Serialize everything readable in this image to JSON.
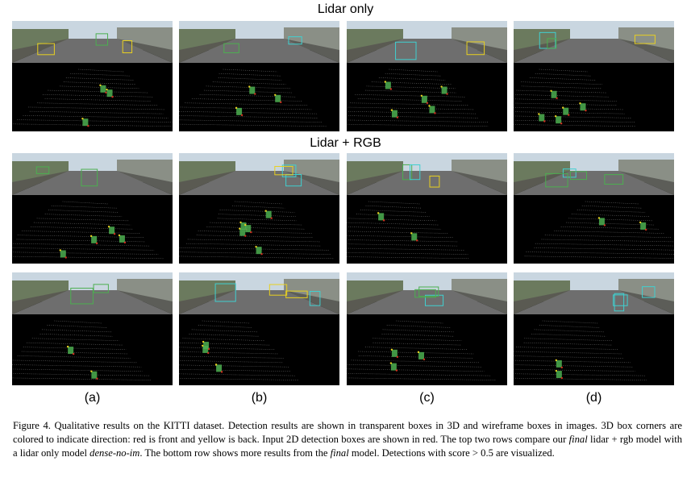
{
  "figure": {
    "section_titles": [
      "Lidar only",
      "Lidar + RGB"
    ],
    "column_labels": [
      "(a)",
      "(b)",
      "(c)",
      "(d)"
    ],
    "caption": {
      "p1": "Figure 4. Qualitative results on the KITTI dataset. Detection results are shown in transparent boxes in 3D and wireframe boxes in images. 3D box corners are colored to indicate direction: red is front and yellow is back. Input 2D detection boxes are shown in red. The top two rows compare our ",
      "final1": "final",
      "p2": " lidar + rgb model with a lidar only model ",
      "model": "dense-no-im",
      "p3": ". The bottom row shows more results from the ",
      "final2": "final",
      "p4": " model. Detections with score > 0.5 are visualized."
    }
  },
  "colors": {
    "box_green": "#4caf50",
    "box_yellow": "#e8d020",
    "box_cyan": "#40d0d0",
    "sky": "#c9d6e0",
    "road": "#6e6e6e"
  }
}
